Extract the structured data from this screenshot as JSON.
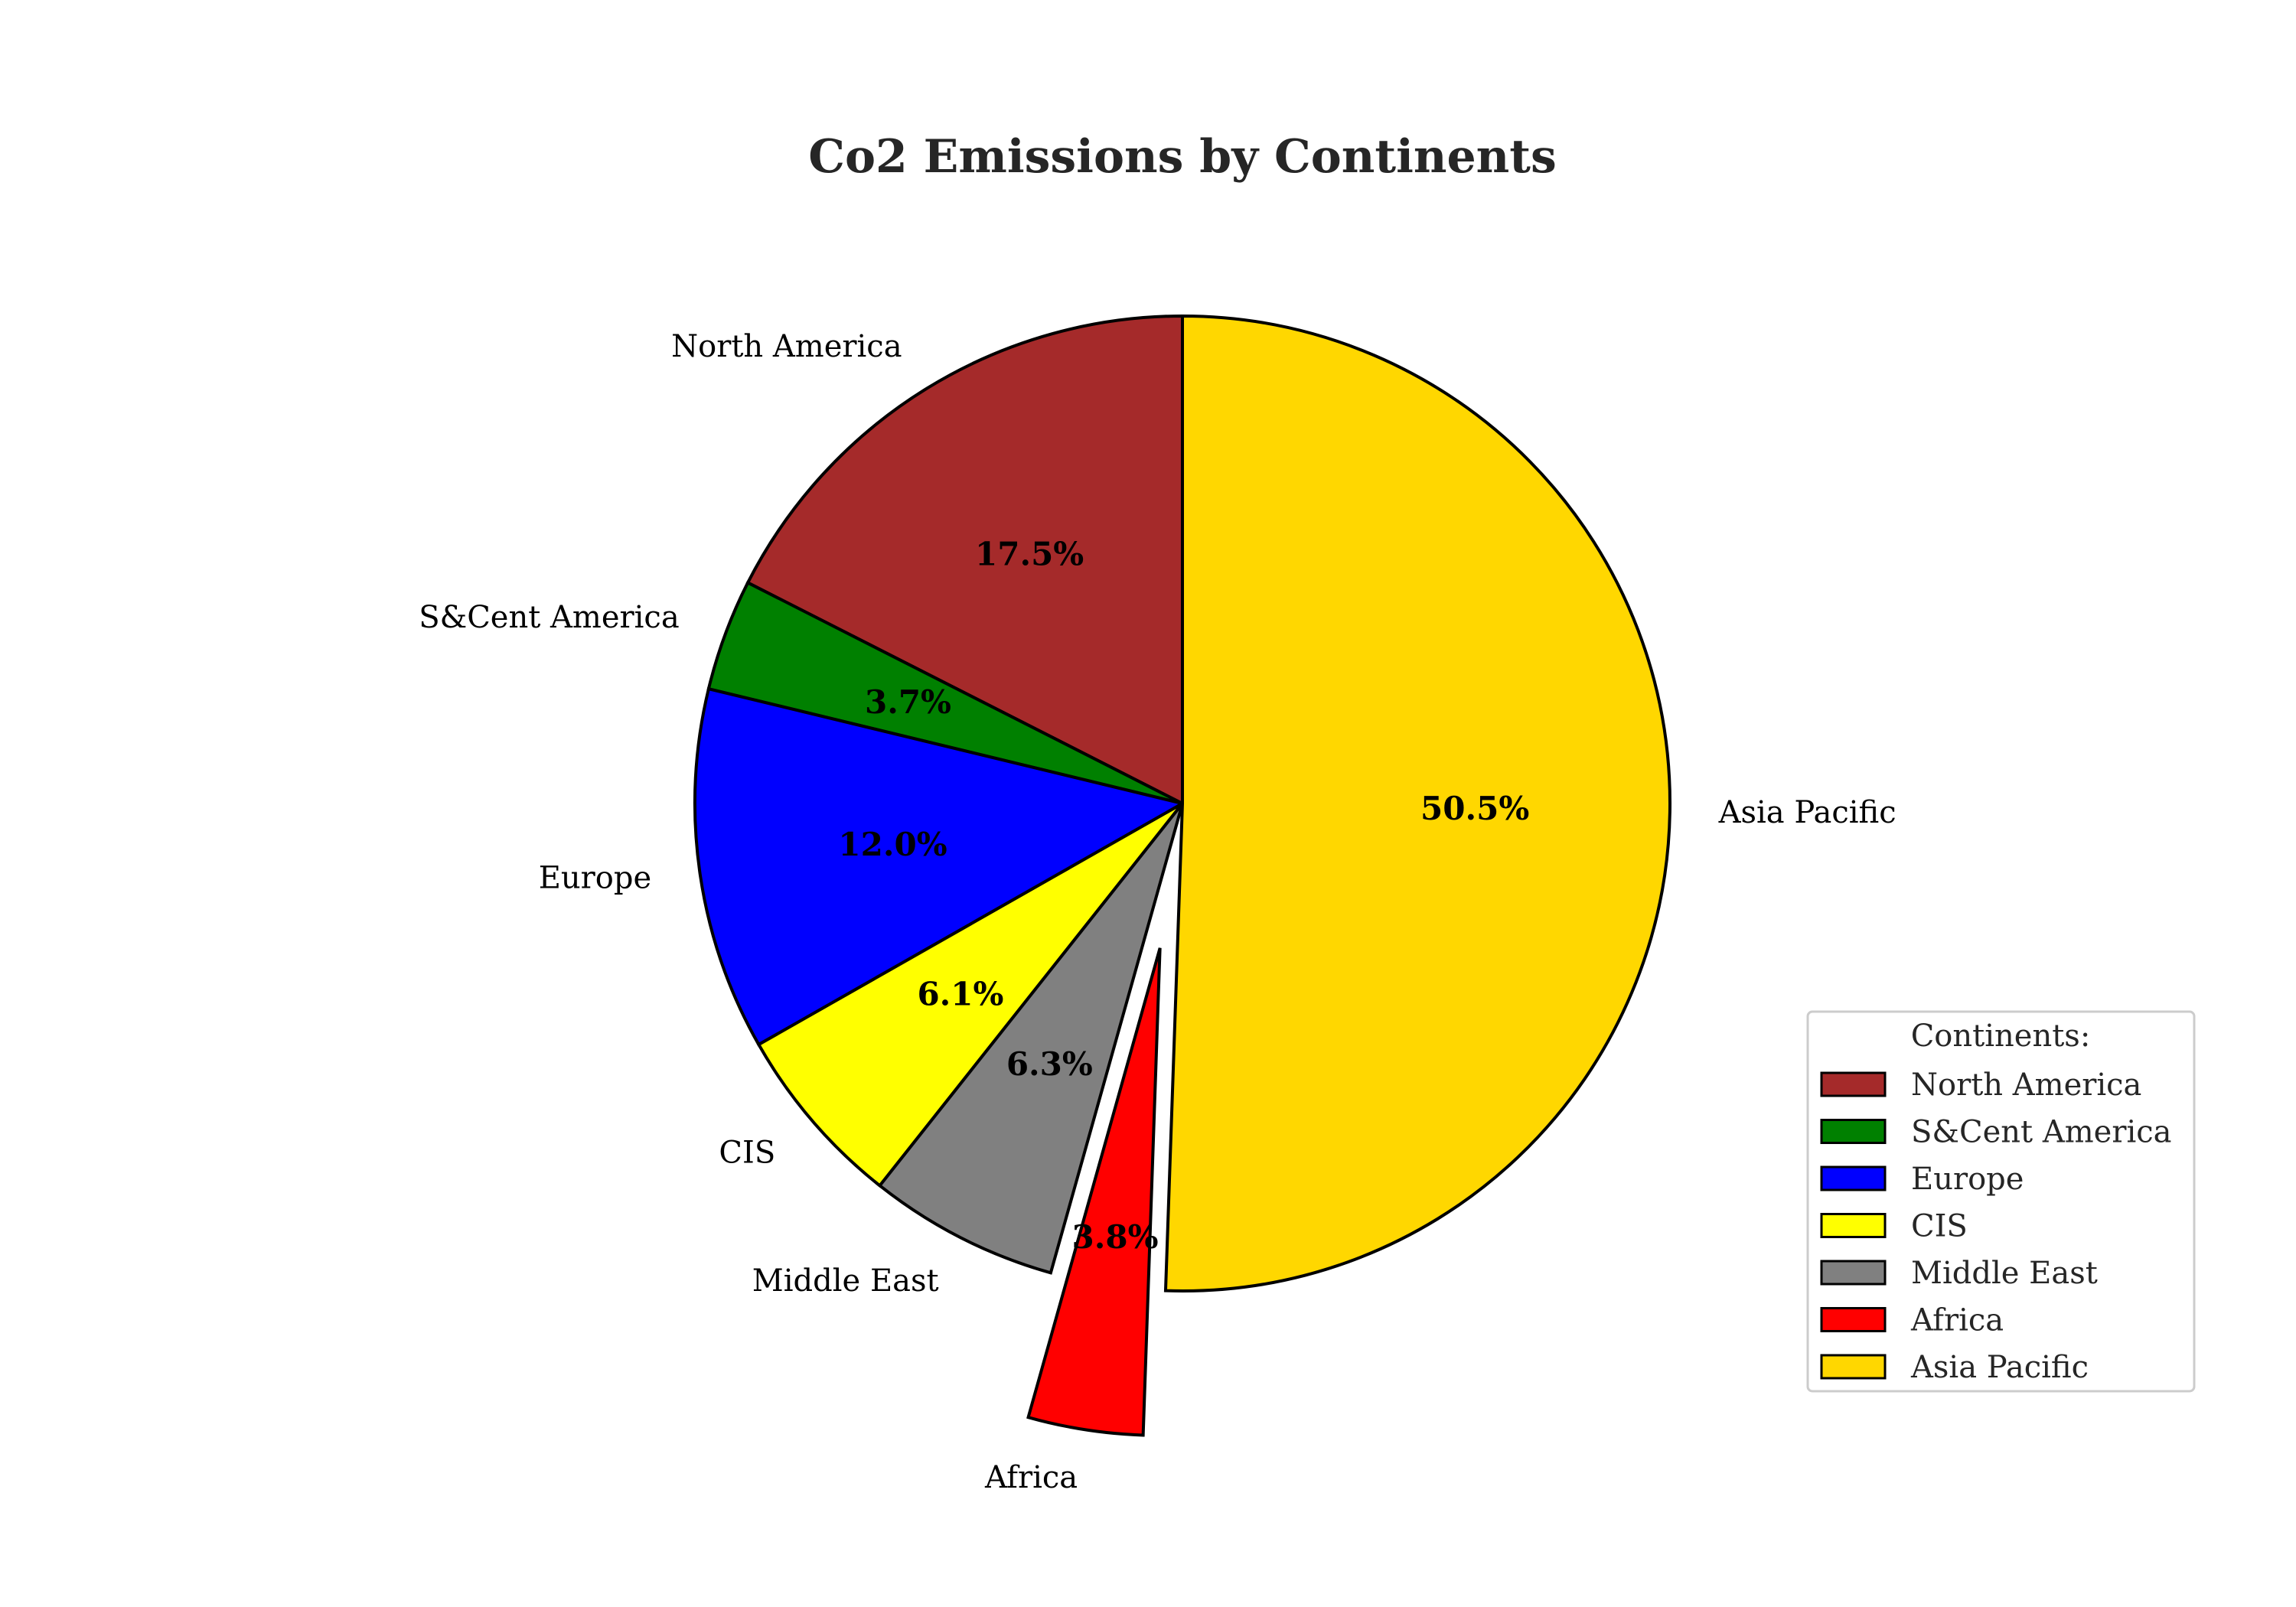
{
  "chart_data": {
    "type": "pie",
    "title": "Co2 Emissions by Continents",
    "legend": {
      "title": "Continents:",
      "placement": "lower-right"
    },
    "start_angle_deg": 90,
    "direction": "counterclockwise",
    "slices": [
      {
        "label": "North America",
        "value": 17.5,
        "pct_label": "17.5%",
        "color": "#A52A2A",
        "exploded": false
      },
      {
        "label": "S&Cent America",
        "value": 3.7,
        "pct_label": "3.7%",
        "color": "#008000",
        "exploded": false
      },
      {
        "label": "Europe",
        "value": 12.0,
        "pct_label": "12.0%",
        "color": "#0000FF",
        "exploded": false
      },
      {
        "label": "CIS",
        "value": 6.1,
        "pct_label": "6.1%",
        "color": "#FFFF00",
        "exploded": false
      },
      {
        "label": "Middle East",
        "value": 6.3,
        "pct_label": "6.3%",
        "color": "#808080",
        "exploded": false
      },
      {
        "label": "Africa",
        "value": 3.8,
        "pct_label": "3.8%",
        "color": "#FF0000",
        "exploded": true
      },
      {
        "label": "Asia Pacific",
        "value": 50.5,
        "pct_label": "50.5%",
        "color": "#FFD700",
        "exploded": false
      }
    ]
  }
}
